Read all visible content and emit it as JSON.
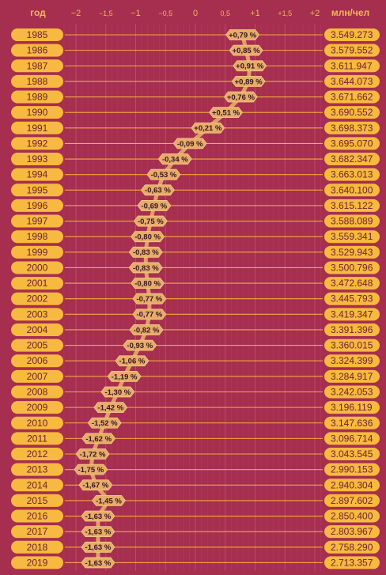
{
  "chart_data": {
    "type": "line",
    "header": {
      "year_label": "год",
      "pop_label": "млн/чел"
    },
    "xlim": [
      -2.3,
      2.3
    ],
    "ticks": [
      {
        "v": -2,
        "label": "−2",
        "minor": false
      },
      {
        "v": -1.5,
        "label": "−1,5",
        "minor": true
      },
      {
        "v": -1,
        "label": "−1",
        "minor": false
      },
      {
        "v": -0.5,
        "label": "−0,5",
        "minor": true
      },
      {
        "v": 0,
        "label": "0",
        "minor": false
      },
      {
        "v": 0.5,
        "label": "0,5",
        "minor": true
      },
      {
        "v": 1,
        "label": "+1",
        "minor": false
      },
      {
        "v": 1.5,
        "label": "+1,5",
        "minor": true
      },
      {
        "v": 2,
        "label": "+2",
        "minor": false
      }
    ],
    "colors": {
      "background": "#a62e4f",
      "accent": "#f7b93f",
      "label_fill": "#e6ad6a",
      "grid": "#b7446a",
      "text_dark": "#6b1f33"
    },
    "rows": [
      {
        "year": "1985",
        "change": 0.79,
        "label": "+0,79 %",
        "population": "3.549.273"
      },
      {
        "year": "1986",
        "change": 0.85,
        "label": "+0,85 %",
        "population": "3.579.552"
      },
      {
        "year": "1987",
        "change": 0.91,
        "label": "+0,91 %",
        "population": "3.611.947"
      },
      {
        "year": "1988",
        "change": 0.89,
        "label": "+0,89 %",
        "population": "3.644.073"
      },
      {
        "year": "1989",
        "change": 0.76,
        "label": "+0,76 %",
        "population": "3.671.662"
      },
      {
        "year": "1990",
        "change": 0.51,
        "label": "+0,51 %",
        "population": "3.690.552"
      },
      {
        "year": "1991",
        "change": 0.21,
        "label": "+0,21 %",
        "population": "3.698.373"
      },
      {
        "year": "1992",
        "change": -0.09,
        "label": "-0,09 %",
        "population": "3.695.070"
      },
      {
        "year": "1993",
        "change": -0.34,
        "label": "-0,34 %",
        "population": "3.682.347"
      },
      {
        "year": "1994",
        "change": -0.53,
        "label": "-0,53 %",
        "population": "3.663.013"
      },
      {
        "year": "1995",
        "change": -0.63,
        "label": "-0,63 %",
        "population": "3.640.100"
      },
      {
        "year": "1996",
        "change": -0.69,
        "label": "-0,69 %",
        "population": "3.615.122"
      },
      {
        "year": "1997",
        "change": -0.75,
        "label": "-0,75 %",
        "population": "3.588.089"
      },
      {
        "year": "1998",
        "change": -0.8,
        "label": "-0,80 %",
        "population": "3.559.341"
      },
      {
        "year": "1999",
        "change": -0.83,
        "label": "-0,83 %",
        "population": "3.529.943"
      },
      {
        "year": "2000",
        "change": -0.83,
        "label": "-0,83 %",
        "population": "3.500.796"
      },
      {
        "year": "2001",
        "change": -0.8,
        "label": "-0,80 %",
        "population": "3.472.648"
      },
      {
        "year": "2002",
        "change": -0.77,
        "label": "-0,77 %",
        "population": "3.445.793"
      },
      {
        "year": "2003",
        "change": -0.77,
        "label": "-0,77 %",
        "population": "3.419.347"
      },
      {
        "year": "2004",
        "change": -0.82,
        "label": "-0,82 %",
        "population": "3.391.396"
      },
      {
        "year": "2005",
        "change": -0.93,
        "label": "-0,93 %",
        "population": "3.360.015"
      },
      {
        "year": "2006",
        "change": -1.06,
        "label": "-1,06 %",
        "population": "3.324.399"
      },
      {
        "year": "2007",
        "change": -1.19,
        "label": "-1,19 %",
        "population": "3.284.917"
      },
      {
        "year": "2008",
        "change": -1.3,
        "label": "-1,30 %",
        "population": "3.242.053"
      },
      {
        "year": "2009",
        "change": -1.42,
        "label": "-1,42 %",
        "population": "3.196.119"
      },
      {
        "year": "2010",
        "change": -1.52,
        "label": "-1,52 %",
        "population": "3.147.636"
      },
      {
        "year": "2011",
        "change": -1.62,
        "label": "-1,62 %",
        "population": "3.096.714"
      },
      {
        "year": "2012",
        "change": -1.72,
        "label": "-1,72 %",
        "population": "3.043.545"
      },
      {
        "year": "2013",
        "change": -1.75,
        "label": "-1,75 %",
        "population": "2.990.153"
      },
      {
        "year": "2014",
        "change": -1.67,
        "label": "-1,67 %",
        "population": "2.940.304"
      },
      {
        "year": "2015",
        "change": -1.45,
        "label": "-1,45 %",
        "population": "2.897.602"
      },
      {
        "year": "2016",
        "change": -1.63,
        "label": "-1,63 %",
        "population": "2.850.400"
      },
      {
        "year": "2017",
        "change": -1.63,
        "label": "-1,63 %",
        "population": "2.803.967"
      },
      {
        "year": "2018",
        "change": -1.63,
        "label": "-1,63 %",
        "population": "2.758.290"
      },
      {
        "year": "2019",
        "change": -1.63,
        "label": "-1,63 %",
        "population": "2.713.357"
      }
    ]
  }
}
